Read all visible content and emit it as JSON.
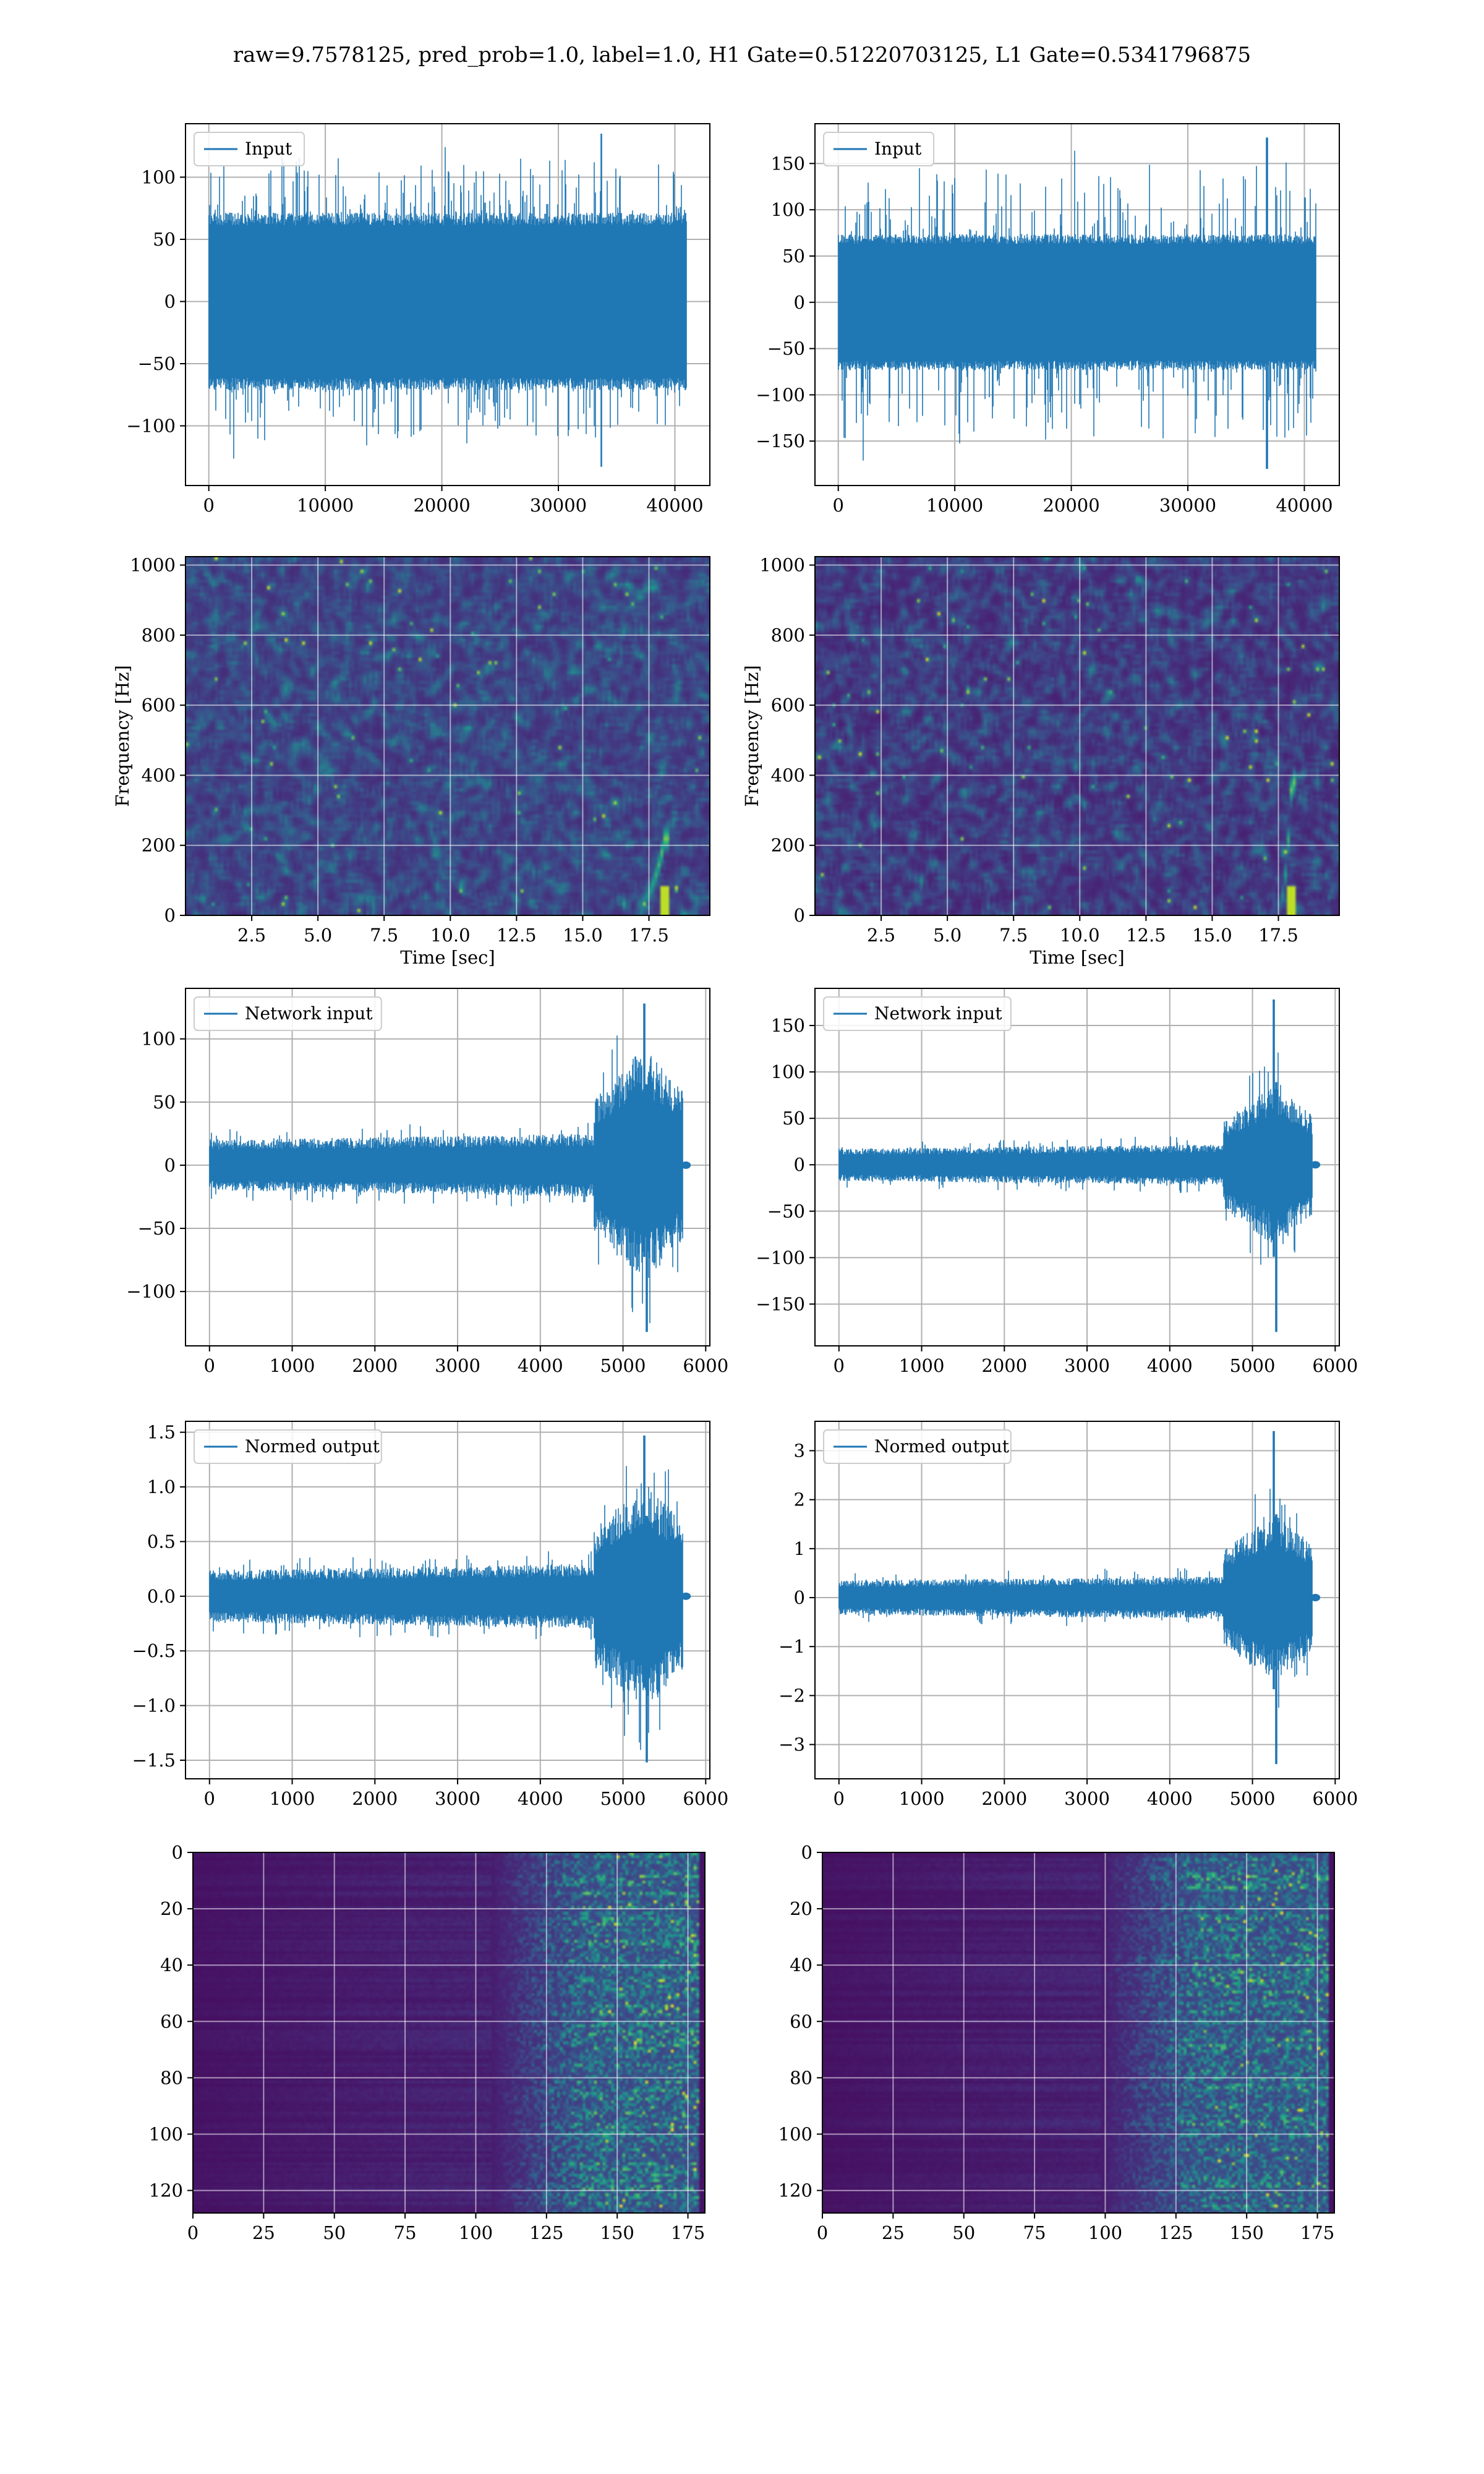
{
  "figure": {
    "title": "raw=9.7578125, pred_prob=1.0, label=1.0, H1 Gate=0.51220703125, L1 Gate=0.5341796875"
  },
  "chart_data": [
    {
      "id": "h1-input",
      "type": "line",
      "series": [
        {
          "name": "Input",
          "color": "#1f77b4",
          "n_samples": 40960
        }
      ],
      "xlim": [
        -2000,
        43000
      ],
      "ylim": [
        -148,
        143
      ],
      "xticks": [
        0,
        10000,
        20000,
        30000,
        40000
      ],
      "yticks": [
        -100,
        -50,
        0,
        50,
        100
      ],
      "xlabel": "",
      "ylabel": "",
      "grid": true,
      "legend": "upper-left",
      "signal": {
        "kind": "noise",
        "core_amp": 68,
        "max": 135,
        "min": -133,
        "spike_x": 33700
      }
    },
    {
      "id": "l1-input",
      "type": "line",
      "series": [
        {
          "name": "Input",
          "color": "#1f77b4",
          "n_samples": 40960
        }
      ],
      "xlim": [
        -2000,
        43000
      ],
      "ylim": [
        -198,
        193
      ],
      "xticks": [
        0,
        10000,
        20000,
        30000,
        40000
      ],
      "yticks": [
        -150,
        -100,
        -50,
        0,
        50,
        100,
        150
      ],
      "xlabel": "",
      "ylabel": "",
      "grid": true,
      "legend": "upper-left",
      "signal": {
        "kind": "noise",
        "core_amp": 70,
        "max": 178,
        "min": -180,
        "spike_x": 36800
      }
    },
    {
      "id": "h1-spectrogram",
      "type": "heatmap",
      "colormap": "viridis",
      "xlim": [
        0,
        19.8
      ],
      "ylim": [
        0,
        1024
      ],
      "xticks": [
        2.5,
        5.0,
        7.5,
        10.0,
        12.5,
        15.0,
        17.5
      ],
      "xtick_labels": [
        "2.5",
        "5.0",
        "7.5",
        "10.0",
        "12.5",
        "15.0",
        "17.5"
      ],
      "yticks": [
        0,
        200,
        400,
        600,
        800,
        1000
      ],
      "xlabel": "Time [sec]",
      "ylabel": "Frequency [Hz]",
      "grid": true,
      "background_level": 0.22,
      "chirp": {
        "t_start": 17.0,
        "t_merge": 18.1,
        "f_low": 30,
        "f_high": 220
      }
    },
    {
      "id": "l1-spectrogram",
      "type": "heatmap",
      "colormap": "viridis",
      "xlim": [
        0,
        19.8
      ],
      "ylim": [
        0,
        1024
      ],
      "xticks": [
        2.5,
        5.0,
        7.5,
        10.0,
        12.5,
        15.0,
        17.5
      ],
      "xtick_labels": [
        "2.5",
        "5.0",
        "7.5",
        "10.0",
        "12.5",
        "15.0",
        "17.5"
      ],
      "yticks": [
        0,
        200,
        400,
        600,
        800,
        1000
      ],
      "xlabel": "Time [sec]",
      "ylabel": "Frequency [Hz]",
      "grid": true,
      "background_level": 0.16,
      "chirp": {
        "t_start": 17.5,
        "t_merge": 18.0,
        "f_low": 30,
        "f_high": 380
      }
    },
    {
      "id": "h1-network-input",
      "type": "line",
      "series": [
        {
          "name": "Network input",
          "color": "#1f77b4",
          "n_samples": 5760
        }
      ],
      "xlim": [
        -290,
        6050
      ],
      "ylim": [
        -143,
        140
      ],
      "xticks": [
        0,
        1000,
        2000,
        3000,
        4000,
        5000,
        6000
      ],
      "yticks": [
        -100,
        -50,
        0,
        50,
        100
      ],
      "xlabel": "",
      "ylabel": "",
      "grid": true,
      "legend": "upper-left",
      "signal": {
        "kind": "chirp",
        "base_amp": 16,
        "burst_start": 4650,
        "burst_amp": 75,
        "end": 5720,
        "peak": 128,
        "trough": -132,
        "peak_x": 5260
      }
    },
    {
      "id": "l1-network-input",
      "type": "line",
      "series": [
        {
          "name": "Network input",
          "color": "#1f77b4",
          "n_samples": 5760
        }
      ],
      "xlim": [
        -290,
        6050
      ],
      "ylim": [
        -195,
        190
      ],
      "xticks": [
        0,
        1000,
        2000,
        3000,
        4000,
        5000,
        6000
      ],
      "yticks": [
        -150,
        -100,
        -50,
        0,
        50,
        100,
        150
      ],
      "xlabel": "",
      "ylabel": "",
      "grid": true,
      "legend": "upper-left",
      "signal": {
        "kind": "chirp",
        "base_amp": 14,
        "burst_start": 4650,
        "burst_amp": 70,
        "end": 5720,
        "peak": 178,
        "trough": -180,
        "peak_x": 5260
      }
    },
    {
      "id": "h1-normed-output",
      "type": "line",
      "series": [
        {
          "name": "Normed output",
          "color": "#1f77b4",
          "n_samples": 5760
        }
      ],
      "xlim": [
        -290,
        6050
      ],
      "ylim": [
        -1.67,
        1.6
      ],
      "xticks": [
        0,
        1000,
        2000,
        3000,
        4000,
        5000,
        6000
      ],
      "yticks": [
        -1.5,
        -1.0,
        -0.5,
        0.0,
        0.5,
        1.0,
        1.5
      ],
      "ytick_labels": [
        "−1.5",
        "−1.0",
        "−0.5",
        "0.0",
        "0.5",
        "1.0",
        "1.5"
      ],
      "xlabel": "",
      "ylabel": "",
      "grid": true,
      "legend": "upper-left",
      "signal": {
        "kind": "chirp",
        "base_amp": 0.19,
        "burst_start": 4650,
        "burst_amp": 0.85,
        "end": 5720,
        "peak": 1.47,
        "trough": -1.52,
        "peak_x": 5260
      }
    },
    {
      "id": "l1-normed-output",
      "type": "line",
      "series": [
        {
          "name": "Normed output",
          "color": "#1f77b4",
          "n_samples": 5760
        }
      ],
      "xlim": [
        -290,
        6050
      ],
      "ylim": [
        -3.7,
        3.6
      ],
      "xticks": [
        0,
        1000,
        2000,
        3000,
        4000,
        5000,
        6000
      ],
      "yticks": [
        -3,
        -2,
        -1,
        0,
        1,
        2,
        3
      ],
      "xlabel": "",
      "ylabel": "",
      "grid": true,
      "legend": "upper-left",
      "signal": {
        "kind": "chirp",
        "base_amp": 0.28,
        "burst_start": 4650,
        "burst_amp": 1.4,
        "end": 5720,
        "peak": 3.4,
        "trough": -3.4,
        "peak_x": 5260
      }
    },
    {
      "id": "h1-feature-map",
      "type": "heatmap",
      "colormap": "viridis",
      "xlim": [
        0,
        181
      ],
      "ylim": [
        128,
        0
      ],
      "xticks": [
        0,
        25,
        50,
        75,
        100,
        125,
        150,
        175
      ],
      "yticks": [
        0,
        20,
        40,
        60,
        80,
        100,
        120
      ],
      "xlabel": "",
      "ylabel": "",
      "grid": true,
      "rows": 128,
      "cols": 181,
      "activation_onset": 125
    },
    {
      "id": "l1-feature-map",
      "type": "heatmap",
      "colormap": "viridis",
      "xlim": [
        0,
        181
      ],
      "ylim": [
        128,
        0
      ],
      "xticks": [
        0,
        25,
        50,
        75,
        100,
        125,
        150,
        175
      ],
      "yticks": [
        0,
        20,
        40,
        60,
        80,
        100,
        120
      ],
      "xlabel": "",
      "ylabel": "",
      "grid": true,
      "rows": 128,
      "cols": 181,
      "activation_onset": 118
    }
  ]
}
